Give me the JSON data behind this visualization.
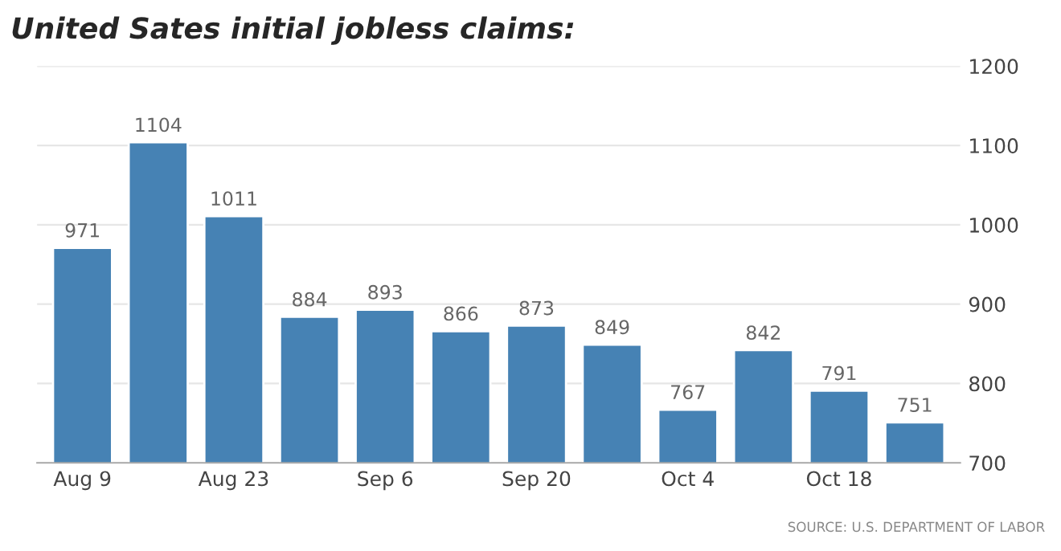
{
  "chart_data": {
    "type": "bar",
    "title": "United Sates initial jobless claims:",
    "categories": [
      "Aug 9",
      null,
      "Aug 23",
      null,
      "Sep 6",
      null,
      "Sep 20",
      null,
      "Oct 4",
      null,
      "Oct 18",
      null
    ],
    "values": [
      971,
      1104,
      1011,
      884,
      893,
      866,
      873,
      849,
      767,
      842,
      791,
      751
    ],
    "color": "#4682b4",
    "ylim": [
      700,
      1200
    ],
    "yticks": [
      700,
      800,
      900,
      1000,
      1100,
      1200
    ],
    "grid": "y",
    "data_labels": true,
    "annotations": [
      "SOURCE: U.S. DEPARTMENT OF LABOR"
    ]
  }
}
